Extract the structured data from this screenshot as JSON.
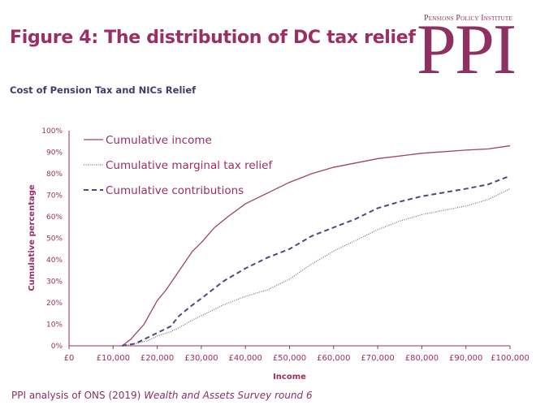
{
  "header": {
    "title": "Figure 4: The distribution of DC tax relief",
    "subtitle": "Cost of Pension Tax and NICs Relief"
  },
  "logo": {
    "small_text": "Pensions Policy Institute",
    "big_text": "PPI"
  },
  "source": {
    "prefix": "PPI analysis of ONS (2019) ",
    "italic": "Wealth and Assets Survey round 6"
  },
  "colors": {
    "accent": "#9b2e62",
    "income": "#a0406e",
    "contributions": "#4a4a80",
    "marginal": "#777777"
  },
  "chart_data": {
    "type": "line",
    "xlabel": "Income",
    "ylabel": "Cumulative percentage",
    "xlim": [
      0,
      100000
    ],
    "ylim": [
      0,
      100
    ],
    "x_ticks": [
      "£0",
      "£10,000",
      "£20,000",
      "£30,000",
      "£40,000",
      "£50,000",
      "£60,000",
      "£70,000",
      "£80,000",
      "£90,000",
      "£100,000"
    ],
    "y_ticks": [
      "0%",
      "10%",
      "20%",
      "30%",
      "40%",
      "50%",
      "60%",
      "70%",
      "80%",
      "90%",
      "100%"
    ],
    "legend": "top-left",
    "grid": false,
    "series": [
      {
        "name": "Cumulative income",
        "style": "solid",
        "x": [
          12000,
          14000,
          17000,
          20000,
          22000,
          25000,
          28000,
          30000,
          33000,
          36000,
          40000,
          45000,
          50000,
          55000,
          60000,
          70000,
          80000,
          90000,
          95000,
          100000
        ],
        "y": [
          0,
          3,
          10,
          21,
          26,
          35,
          44,
          48,
          55,
          60,
          66,
          71,
          76,
          80,
          83,
          87,
          89.5,
          91,
          91.5,
          93
        ]
      },
      {
        "name": "Cumulative marginal tax relief",
        "style": "dotted",
        "x": [
          12000,
          15000,
          18000,
          20000,
          23000,
          25000,
          28000,
          30000,
          35000,
          40000,
          45000,
          50000,
          55000,
          60000,
          65000,
          70000,
          75000,
          80000,
          90000,
          95000,
          100000
        ],
        "y": [
          0,
          1,
          2.5,
          4.5,
          6.5,
          8.5,
          12,
          14,
          19,
          23,
          26,
          31,
          38,
          44,
          49,
          54,
          58,
          61,
          65,
          68,
          73
        ]
      },
      {
        "name": "Cumulative contributions",
        "style": "dashed",
        "x": [
          12000,
          15000,
          18000,
          20000,
          23000,
          25000,
          28000,
          30000,
          35000,
          40000,
          45000,
          50000,
          55000,
          60000,
          65000,
          70000,
          75000,
          80000,
          90000,
          95000,
          100000
        ],
        "y": [
          0,
          1,
          4,
          6,
          9,
          14,
          19,
          22,
          30,
          36,
          41,
          45,
          51,
          55,
          59,
          64,
          67,
          69.5,
          73,
          75,
          79
        ]
      }
    ]
  }
}
